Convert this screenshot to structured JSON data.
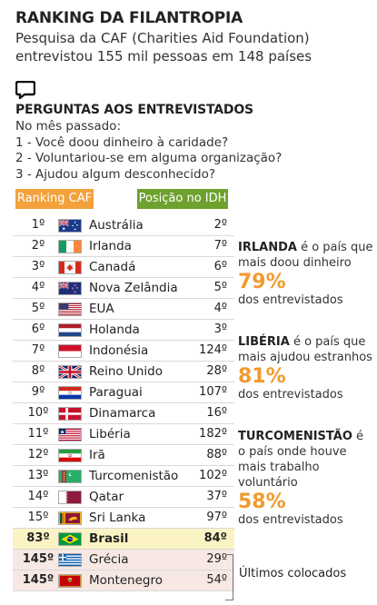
{
  "header": {
    "title": "RANKING DA FILANTROPIA",
    "subtitle": "Pesquisa da CAF (Charities Aid Foundation) entrevistou 155 mil pessoas em 148 países"
  },
  "questions": {
    "heading": "PERGUNTAS AOS ENTREVISTADOS",
    "intro": "No mês passado:",
    "items": [
      "1 - Você doou dinheiro à caridade?",
      "2 - Voluntariou-se em alguma organização?",
      "3 - Ajudou algum desconhecido?"
    ]
  },
  "table": {
    "col_rank": "Ranking CAF",
    "col_idh": "Posição no IDH",
    "rows": [
      {
        "rank": "1º",
        "country": "Austrália",
        "idh": "2º"
      },
      {
        "rank": "2º",
        "country": "Irlanda",
        "idh": "7º"
      },
      {
        "rank": "3º",
        "country": "Canadá",
        "idh": "6º"
      },
      {
        "rank": "4º",
        "country": "Nova Zelândia",
        "idh": "5º"
      },
      {
        "rank": "5º",
        "country": "EUA",
        "idh": "4º"
      },
      {
        "rank": "6º",
        "country": "Holanda",
        "idh": "3º"
      },
      {
        "rank": "7º",
        "country": "Indonésia",
        "idh": "124º"
      },
      {
        "rank": "8º",
        "country": "Reino Unido",
        "idh": "28º"
      },
      {
        "rank": "9º",
        "country": "Paraguai",
        "idh": "107º"
      },
      {
        "rank": "10º",
        "country": "Dinamarca",
        "idh": "16º"
      },
      {
        "rank": "11º",
        "country": "Libéria",
        "idh": "182º"
      },
      {
        "rank": "12º",
        "country": "Irã",
        "idh": "88º"
      },
      {
        "rank": "13º",
        "country": "Turcomenistão",
        "idh": "102º"
      },
      {
        "rank": "14º",
        "country": "Qatar",
        "idh": "37º"
      },
      {
        "rank": "15º",
        "country": "Sri Lanka",
        "idh": "97º"
      },
      {
        "rank": "83º",
        "country": "Brasil",
        "idh": "84º"
      },
      {
        "rank": "145º",
        "country": "Grécia",
        "idh": "29º"
      },
      {
        "rank": "145º",
        "country": "Montenegro",
        "idh": "54º"
      }
    ],
    "last_label": "Últimos colocados"
  },
  "callouts": [
    {
      "country": "IRLANDA",
      "text": " é o país que mais doou dinheiro",
      "pct": "79%",
      "sub": "dos entrevistados"
    },
    {
      "country": "LIBÉRIA",
      "text": " é o país que mais ajudou estranhos",
      "pct": "81%",
      "sub": "dos entrevistados"
    },
    {
      "country": "TURCOMENISTÃO",
      "text": " é o país onde houve mais trabalho voluntário",
      "pct": "58%",
      "sub": "dos entrevistados"
    }
  ],
  "colors": {
    "rank_header": "#f3a13b",
    "idh_header": "#6ea12e",
    "percent": "#f29a2e",
    "brasil_row": "#fbf3c4",
    "last_rows": "#f7e8e4"
  }
}
